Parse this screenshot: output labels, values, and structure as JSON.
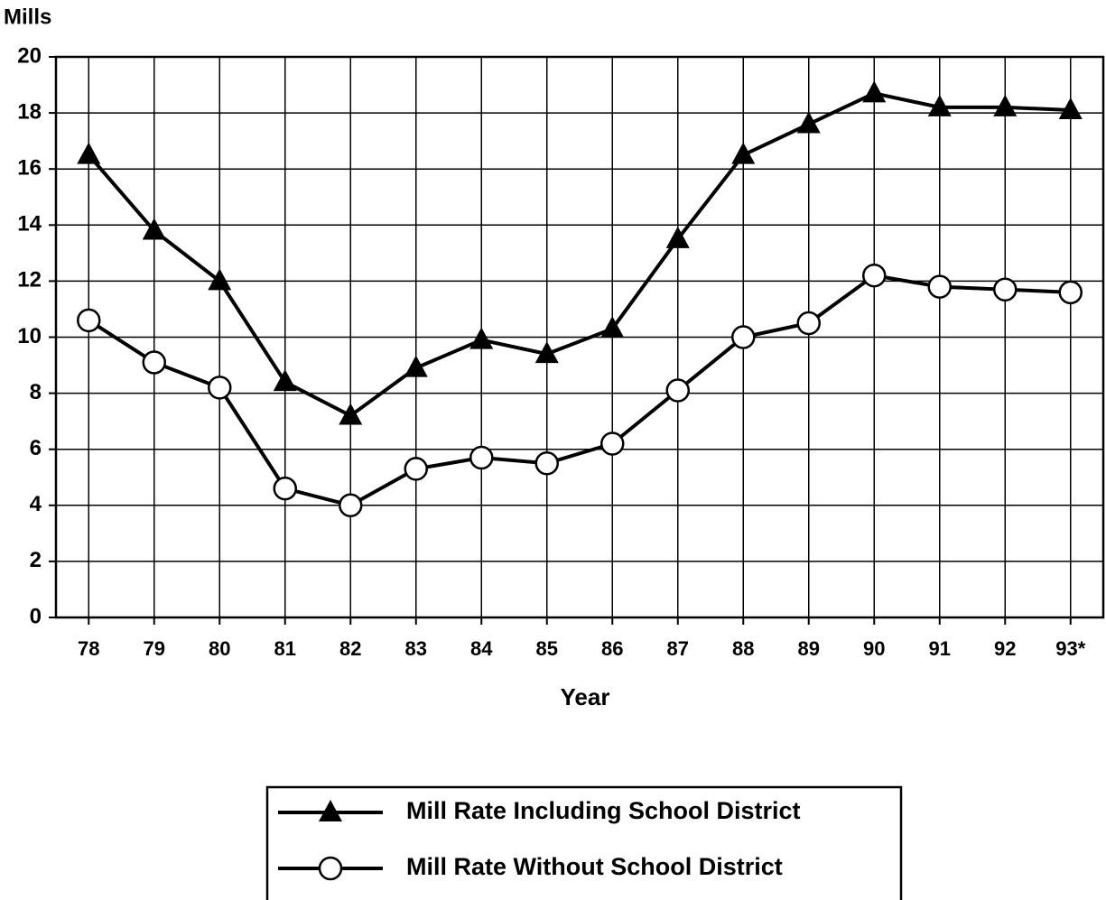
{
  "chart_data": {
    "type": "line",
    "y_label": "Mills",
    "x_label": "Year",
    "categories": [
      "78",
      "79",
      "80",
      "81",
      "82",
      "83",
      "84",
      "85",
      "86",
      "87",
      "88",
      "89",
      "90",
      "91",
      "92",
      "93*"
    ],
    "series": [
      {
        "name": "Mill Rate Including School District",
        "color": "#000000",
        "marker": "triangle",
        "values": [
          16.5,
          13.8,
          12.0,
          8.4,
          7.2,
          8.9,
          9.9,
          9.4,
          10.3,
          13.5,
          16.5,
          17.6,
          18.7,
          18.2,
          18.2,
          18.1
        ]
      },
      {
        "name": "Mill Rate Without School District",
        "color": "#000000",
        "marker": "circle",
        "values": [
          10.6,
          9.1,
          8.2,
          4.6,
          4.0,
          5.3,
          5.7,
          5.5,
          6.2,
          8.1,
          10.0,
          10.5,
          12.2,
          11.8,
          11.7,
          11.6
        ]
      }
    ],
    "ylim": [
      0,
      20
    ],
    "yticks": [
      0,
      2,
      4,
      6,
      8,
      10,
      12,
      14,
      16,
      18,
      20
    ],
    "grid": true,
    "legend": "bottom"
  }
}
